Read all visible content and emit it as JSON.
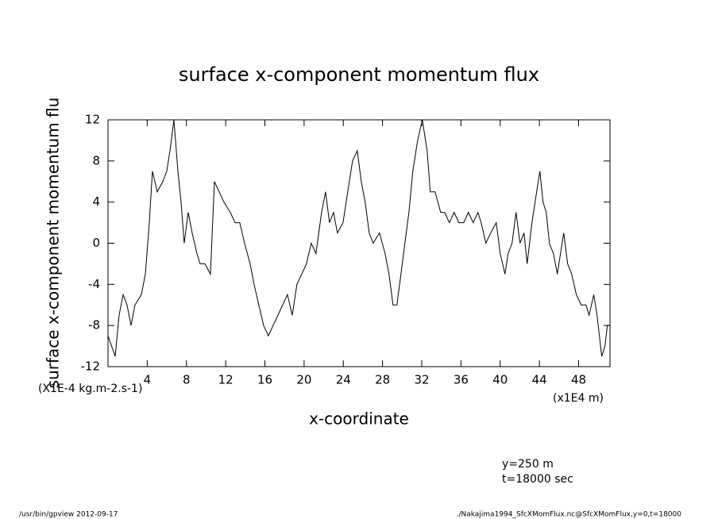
{
  "chart_data": {
    "type": "line",
    "title": "surface x-component momentum flux",
    "y_label": "surface x-component momentum flu",
    "y_units": "(X1E-4 kg.m-2.s-1)",
    "x_label": "x-coordinate",
    "x_units": "(x1E4 m)",
    "annotations": [
      "y=250 m",
      "t=18000 sec"
    ],
    "footer_left": "/usr/bin/gpview  2012-09-17",
    "footer_right": "./Nakajima1994_SfcXMomFlux.nc@SfcXMomFlux,y=0,t=18000",
    "x": [
      0,
      0.73,
      1.13,
      1.54,
      1.94,
      2.35,
      2.75,
      3.4,
      3.81,
      4.21,
      4.53,
      5.02,
      5.59,
      5.99,
      6.32,
      6.72,
      7.13,
      7.45,
      7.77,
      8.18,
      8.58,
      9.07,
      9.39,
      9.88,
      10.45,
      10.85,
      11.34,
      11.82,
      12.47,
      12.96,
      13.44,
      13.93,
      14.49,
      14.9,
      15.38,
      15.87,
      16.36,
      16.84,
      17.33,
      17.81,
      18.3,
      18.79,
      19.27,
      19.76,
      20.24,
      20.73,
      21.21,
      21.78,
      22.19,
      22.59,
      23.0,
      23.4,
      23.97,
      24.45,
      24.94,
      25.43,
      25.83,
      26.23,
      26.64,
      27.04,
      27.69,
      28.26,
      28.66,
      29.07,
      29.47,
      29.88,
      30.28,
      30.69,
      31.09,
      31.58,
      32.06,
      32.55,
      32.87,
      33.36,
      33.93,
      34.33,
      34.82,
      35.3,
      35.79,
      36.28,
      36.76,
      37.25,
      37.73,
      38.06,
      38.54,
      39.03,
      39.6,
      40.0,
      40.49,
      40.81,
      41.21,
      41.62,
      42.02,
      42.43,
      42.75,
      43.24,
      43.72,
      44.05,
      44.37,
      44.7,
      45.02,
      45.43,
      45.83,
      46.15,
      46.48,
      46.88,
      47.29,
      47.77,
      48.26,
      48.75,
      49.07,
      49.55,
      49.88,
      50.12,
      50.36,
      50.69,
      50.93,
      51.17
    ],
    "series": [
      {
        "name": "SfcXMomFlux",
        "color": "#000000",
        "values": [
          -9,
          -11,
          -7,
          -5,
          -6,
          -8,
          -6,
          -5,
          -3,
          2,
          7,
          5,
          6,
          7,
          9,
          12,
          7,
          4,
          0,
          3,
          1,
          -1,
          -2,
          -2,
          -3,
          6,
          5,
          4,
          3,
          2,
          2,
          0,
          -2,
          -4,
          -6,
          -8,
          -9,
          -8,
          -7,
          -6,
          -5,
          -7,
          -4,
          -3,
          -2,
          0,
          -1,
          3,
          5,
          2,
          3,
          1,
          2,
          5,
          8,
          9,
          6,
          4,
          1,
          0,
          1,
          -1,
          -3,
          -6,
          -6,
          -3,
          0,
          3,
          7,
          10,
          12,
          9,
          5,
          5,
          3,
          3,
          2,
          3,
          2,
          2,
          3,
          2,
          3,
          2,
          0,
          1,
          2,
          -1,
          -3,
          -1,
          0,
          3,
          0,
          1,
          -2,
          2,
          5,
          7,
          4,
          3,
          0,
          -1,
          -3,
          -1,
          1,
          -2,
          -3,
          -5,
          -6,
          -6,
          -7,
          -5,
          -7,
          -9,
          -11,
          -10,
          -8,
          -8
        ]
      }
    ],
    "xlim": [
      0,
      51.2
    ],
    "xticks": [
      4,
      8,
      12,
      16,
      20,
      24,
      28,
      32,
      36,
      40,
      44,
      48
    ],
    "ylim": [
      -12,
      12
    ],
    "yticks": [
      -12,
      -8,
      -4,
      0,
      4,
      8,
      12
    ]
  }
}
